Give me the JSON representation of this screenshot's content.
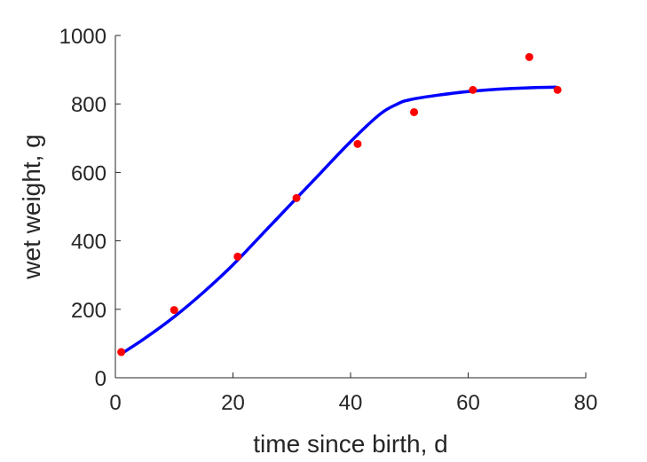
{
  "chart_data": {
    "type": "scatter",
    "title": "",
    "xlabel": "time since birth, d",
    "ylabel": "wet weight, g",
    "xlim": [
      0,
      80
    ],
    "ylim": [
      0,
      1000
    ],
    "xticks": [
      0,
      20,
      40,
      60,
      80
    ],
    "yticks": [
      0,
      200,
      400,
      600,
      800,
      1000
    ],
    "grid": false,
    "series": [
      {
        "type": "scatter",
        "color": "#ff0000",
        "x": [
          1,
          10,
          20.8,
          30.8,
          41.2,
          50.8,
          60.8,
          70.4,
          75.2
        ],
        "y": [
          75,
          198,
          354,
          525,
          683,
          776,
          841,
          937,
          841
        ]
      },
      {
        "type": "line",
        "color": "#0000ff",
        "x": [
          1,
          5,
          10,
          15,
          20,
          25,
          30,
          35,
          40,
          45,
          48,
          50,
          55,
          60,
          65,
          70,
          75
        ],
        "y": [
          70,
          115,
          178,
          250,
          330,
          420,
          510,
          600,
          690,
          770,
          800,
          812,
          826,
          836,
          843,
          847,
          849
        ]
      }
    ]
  }
}
